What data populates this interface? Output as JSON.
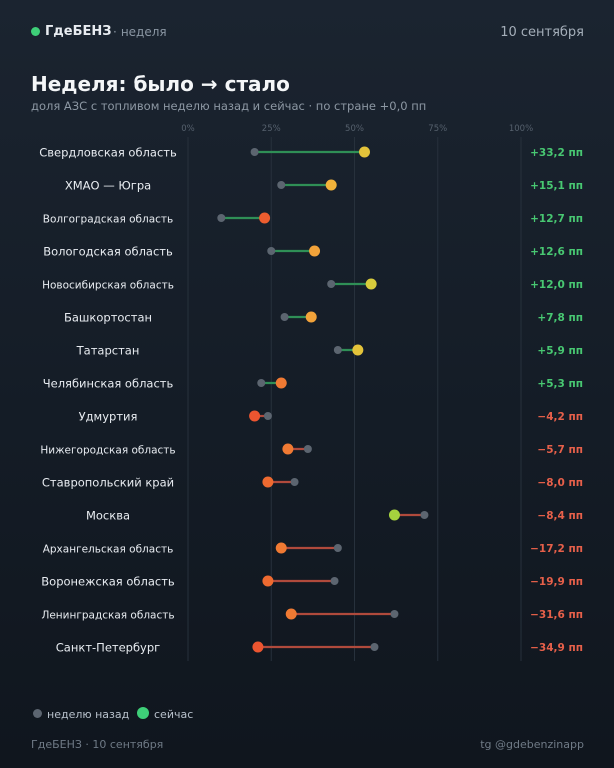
{
  "header": {
    "brand": "ГдеБЕНЗ",
    "period": "неделя",
    "date": "10 сентября"
  },
  "title": "Неделя: было → стало",
  "subtitle": "доля АЗС с топливом неделю назад и сейчас · по стране +0,0 пп",
  "legend": {
    "prev_label": "неделю назад",
    "now_label": "сейчас"
  },
  "footer": {
    "left": "ГдеБЕНЗ · 10 сентября",
    "right": "tg @gdebenzinapp"
  },
  "colors": {
    "prev_dot": "#5c6570",
    "up_line": "#2f8f56",
    "down_line": "#b04a3c",
    "up_text": "#48c872",
    "down_text": "#e7604a"
  },
  "chart_data": {
    "type": "dumbbell",
    "xlim": [
      0,
      100
    ],
    "x_ticks": [
      "0%",
      "25%",
      "50%",
      "75%",
      "100%"
    ],
    "x_tick_values": [
      0,
      25,
      50,
      75,
      100
    ],
    "unit": "%",
    "series": [
      {
        "name": "неделю назад",
        "key": "prev"
      },
      {
        "name": "сейчас",
        "key": "now"
      }
    ],
    "rows": [
      {
        "region": "Свердловская область",
        "prev": 20,
        "now": 53,
        "delta": "+33,2 пп",
        "now_color": "#e3c33a"
      },
      {
        "region": "ХМАО — Югра",
        "prev": 28,
        "now": 43,
        "delta": "+15,1 пп",
        "now_color": "#f2b33a"
      },
      {
        "region": "Волгоградская область",
        "prev": 10,
        "now": 23,
        "delta": "+12,7 пп",
        "now_color": "#ec5d2f"
      },
      {
        "region": "Вологодская область",
        "prev": 25,
        "now": 38,
        "delta": "+12,6 пп",
        "now_color": "#f2a33a"
      },
      {
        "region": "Новосибирская область",
        "prev": 43,
        "now": 55,
        "delta": "+12,0 пп",
        "now_color": "#d8cc3c"
      },
      {
        "region": "Башкортостан",
        "prev": 29,
        "now": 37,
        "delta": "+7,8 пп",
        "now_color": "#f2a33a"
      },
      {
        "region": "Татарстан",
        "prev": 45,
        "now": 51,
        "delta": "+5,9 пп",
        "now_color": "#e3c33a"
      },
      {
        "region": "Челябинская область",
        "prev": 22,
        "now": 28,
        "delta": "+5,3 пп",
        "now_color": "#f07a33"
      },
      {
        "region": "Удмуртия",
        "prev": 24,
        "now": 20,
        "delta": "−4,2 пп",
        "now_color": "#ec5530"
      },
      {
        "region": "Нижегородская область",
        "prev": 36,
        "now": 30,
        "delta": "−5,7 пп",
        "now_color": "#f07a33"
      },
      {
        "region": "Ставропольский край",
        "prev": 32,
        "now": 24,
        "delta": "−8,0 пп",
        "now_color": "#ee6a30"
      },
      {
        "region": "Москва",
        "prev": 71,
        "now": 62,
        "delta": "−8,4 пп",
        "now_color": "#a5d13e"
      },
      {
        "region": "Архангельская область",
        "prev": 45,
        "now": 28,
        "delta": "−17,2 пп",
        "now_color": "#f07a33"
      },
      {
        "region": "Воронежская область",
        "prev": 44,
        "now": 24,
        "delta": "−19,9 пп",
        "now_color": "#ee6a30"
      },
      {
        "region": "Ленинградская область",
        "prev": 62,
        "now": 31,
        "delta": "−31,6 пп",
        "now_color": "#f07a33"
      },
      {
        "region": "Санкт-Петербург",
        "prev": 56,
        "now": 21,
        "delta": "−34,9 пп",
        "now_color": "#ec5530"
      }
    ]
  }
}
